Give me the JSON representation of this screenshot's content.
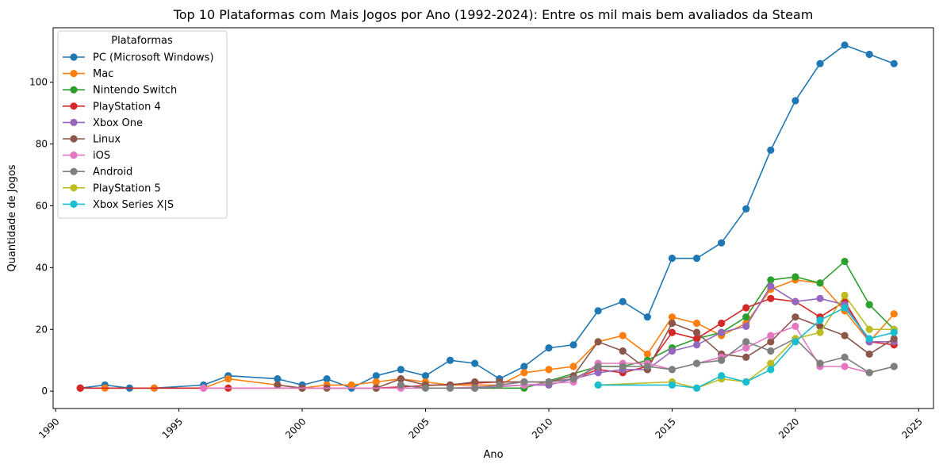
{
  "chart_data": {
    "type": "line",
    "title": "Top 10 Plataformas com Mais Jogos por Ano (1992-2024): Entre os mil mais bem avaliados da Steam",
    "xlabel": "Ano",
    "ylabel": "Quantidade de Jogos",
    "xlim": [
      1989.9,
      2025.6
    ],
    "ylim": [
      -5.6,
      117.6
    ],
    "x_ticks": [
      1990,
      1995,
      2000,
      2005,
      2010,
      2015,
      2020,
      2025
    ],
    "y_ticks": [
      0,
      20,
      40,
      60,
      80,
      100
    ],
    "grid": false,
    "legend_title": "Plataformas",
    "legend_position": "upper-left",
    "series": [
      {
        "name": "PC (Microsoft Windows)",
        "color": "#1f77b4",
        "points": [
          [
            1991,
            1
          ],
          [
            1992,
            2
          ],
          [
            1993,
            1
          ],
          [
            1994,
            1
          ],
          [
            1996,
            2
          ],
          [
            1997,
            5
          ],
          [
            1999,
            4
          ],
          [
            2000,
            2
          ],
          [
            2001,
            4
          ],
          [
            2002,
            1
          ],
          [
            2003,
            5
          ],
          [
            2004,
            7
          ],
          [
            2005,
            5
          ],
          [
            2006,
            10
          ],
          [
            2007,
            9
          ],
          [
            2008,
            4
          ],
          [
            2009,
            8
          ],
          [
            2010,
            14
          ],
          [
            2011,
            15
          ],
          [
            2012,
            26
          ],
          [
            2013,
            29
          ],
          [
            2014,
            24
          ],
          [
            2015,
            43
          ],
          [
            2016,
            43
          ],
          [
            2017,
            48
          ],
          [
            2018,
            59
          ],
          [
            2019,
            78
          ],
          [
            2020,
            94
          ],
          [
            2021,
            106
          ],
          [
            2022,
            112
          ],
          [
            2023,
            109
          ],
          [
            2024,
            106
          ]
        ]
      },
      {
        "name": "Mac",
        "color": "#ff7f0e",
        "points": [
          [
            1991,
            1
          ],
          [
            1992,
            1
          ],
          [
            1994,
            1
          ],
          [
            1996,
            1
          ],
          [
            1997,
            4
          ],
          [
            1999,
            2
          ],
          [
            2000,
            1
          ],
          [
            2001,
            2
          ],
          [
            2002,
            2
          ],
          [
            2003,
            3
          ],
          [
            2004,
            4
          ],
          [
            2005,
            3
          ],
          [
            2006,
            2
          ],
          [
            2007,
            2
          ],
          [
            2008,
            2
          ],
          [
            2009,
            6
          ],
          [
            2010,
            7
          ],
          [
            2011,
            8
          ],
          [
            2012,
            16
          ],
          [
            2013,
            18
          ],
          [
            2014,
            12
          ],
          [
            2015,
            24
          ],
          [
            2016,
            22
          ],
          [
            2017,
            18
          ],
          [
            2018,
            22
          ],
          [
            2019,
            33
          ],
          [
            2020,
            36
          ],
          [
            2021,
            35
          ],
          [
            2022,
            26
          ],
          [
            2023,
            16
          ],
          [
            2024,
            25
          ]
        ]
      },
      {
        "name": "Nintendo Switch",
        "color": "#2ca02c",
        "points": [
          [
            2007,
            1
          ],
          [
            2009,
            1
          ],
          [
            2012,
            8
          ],
          [
            2013,
            8
          ],
          [
            2014,
            10
          ],
          [
            2015,
            14
          ],
          [
            2016,
            17
          ],
          [
            2017,
            19
          ],
          [
            2018,
            24
          ],
          [
            2019,
            36
          ],
          [
            2020,
            37
          ],
          [
            2021,
            35
          ],
          [
            2022,
            42
          ],
          [
            2023,
            28
          ],
          [
            2024,
            20
          ]
        ]
      },
      {
        "name": "PlayStation 4",
        "color": "#d62728",
        "points": [
          [
            1991,
            1
          ],
          [
            1997,
            1
          ],
          [
            2000,
            1
          ],
          [
            2003,
            1
          ],
          [
            2008,
            3
          ],
          [
            2010,
            3
          ],
          [
            2011,
            4
          ],
          [
            2012,
            7
          ],
          [
            2013,
            6
          ],
          [
            2014,
            8
          ],
          [
            2015,
            19
          ],
          [
            2016,
            17
          ],
          [
            2017,
            22
          ],
          [
            2018,
            27
          ],
          [
            2019,
            30
          ],
          [
            2020,
            29
          ],
          [
            2021,
            24
          ],
          [
            2022,
            29
          ],
          [
            2023,
            16
          ],
          [
            2024,
            15
          ]
        ]
      },
      {
        "name": "Xbox One",
        "color": "#9467bd",
        "points": [
          [
            2007,
            1
          ],
          [
            2009,
            2
          ],
          [
            2010,
            2
          ],
          [
            2011,
            4
          ],
          [
            2012,
            6
          ],
          [
            2013,
            7
          ],
          [
            2014,
            7
          ],
          [
            2015,
            13
          ],
          [
            2016,
            15
          ],
          [
            2017,
            19
          ],
          [
            2018,
            21
          ],
          [
            2019,
            34
          ],
          [
            2020,
            29
          ],
          [
            2021,
            30
          ],
          [
            2022,
            28
          ],
          [
            2023,
            16
          ],
          [
            2024,
            16
          ]
        ]
      },
      {
        "name": "Linux",
        "color": "#8c564b",
        "points": [
          [
            1999,
            2
          ],
          [
            2000,
            1
          ],
          [
            2001,
            1
          ],
          [
            2003,
            1
          ],
          [
            2004,
            4
          ],
          [
            2005,
            2
          ],
          [
            2006,
            2
          ],
          [
            2007,
            3
          ],
          [
            2008,
            3
          ],
          [
            2009,
            3
          ],
          [
            2010,
            3
          ],
          [
            2011,
            5
          ],
          [
            2012,
            16
          ],
          [
            2013,
            13
          ],
          [
            2014,
            7
          ],
          [
            2015,
            22
          ],
          [
            2016,
            19
          ],
          [
            2017,
            12
          ],
          [
            2018,
            11
          ],
          [
            2019,
            16
          ],
          [
            2020,
            24
          ],
          [
            2021,
            21
          ],
          [
            2022,
            18
          ],
          [
            2023,
            12
          ],
          [
            2024,
            17
          ]
        ]
      },
      {
        "name": "iOS",
        "color": "#e377c2",
        "points": [
          [
            1996,
            1
          ],
          [
            2004,
            1
          ],
          [
            2006,
            1
          ],
          [
            2009,
            2
          ],
          [
            2011,
            3
          ],
          [
            2012,
            9
          ],
          [
            2013,
            9
          ],
          [
            2014,
            9
          ],
          [
            2015,
            7
          ],
          [
            2016,
            9
          ],
          [
            2017,
            11
          ],
          [
            2018,
            14
          ],
          [
            2019,
            18
          ],
          [
            2020,
            21
          ],
          [
            2021,
            8
          ],
          [
            2022,
            8
          ],
          [
            2023,
            6
          ],
          [
            2024,
            8
          ]
        ]
      },
      {
        "name": "Android",
        "color": "#7f7f7f",
        "points": [
          [
            2004,
            2
          ],
          [
            2005,
            1
          ],
          [
            2006,
            1
          ],
          [
            2007,
            1
          ],
          [
            2008,
            2
          ],
          [
            2009,
            3
          ],
          [
            2010,
            3
          ],
          [
            2011,
            4
          ],
          [
            2012,
            8
          ],
          [
            2013,
            8
          ],
          [
            2014,
            8
          ],
          [
            2015,
            7
          ],
          [
            2016,
            9
          ],
          [
            2017,
            10
          ],
          [
            2018,
            16
          ],
          [
            2019,
            13
          ],
          [
            2020,
            17
          ],
          [
            2021,
            9
          ],
          [
            2022,
            11
          ],
          [
            2023,
            6
          ],
          [
            2024,
            8
          ]
        ]
      },
      {
        "name": "PlayStation 5",
        "color": "#bcbd22",
        "points": [
          [
            2012,
            2
          ],
          [
            2015,
            3
          ],
          [
            2016,
            1
          ],
          [
            2017,
            4
          ],
          [
            2018,
            3
          ],
          [
            2019,
            9
          ],
          [
            2020,
            17
          ],
          [
            2021,
            19
          ],
          [
            2022,
            31
          ],
          [
            2023,
            20
          ],
          [
            2024,
            20
          ]
        ]
      },
      {
        "name": "Xbox Series X|S",
        "color": "#17becf",
        "points": [
          [
            2012,
            2
          ],
          [
            2015,
            2
          ],
          [
            2016,
            1
          ],
          [
            2017,
            5
          ],
          [
            2018,
            3
          ],
          [
            2019,
            7
          ],
          [
            2020,
            16
          ],
          [
            2021,
            23
          ],
          [
            2022,
            27
          ],
          [
            2023,
            17
          ],
          [
            2024,
            19
          ]
        ]
      }
    ]
  }
}
